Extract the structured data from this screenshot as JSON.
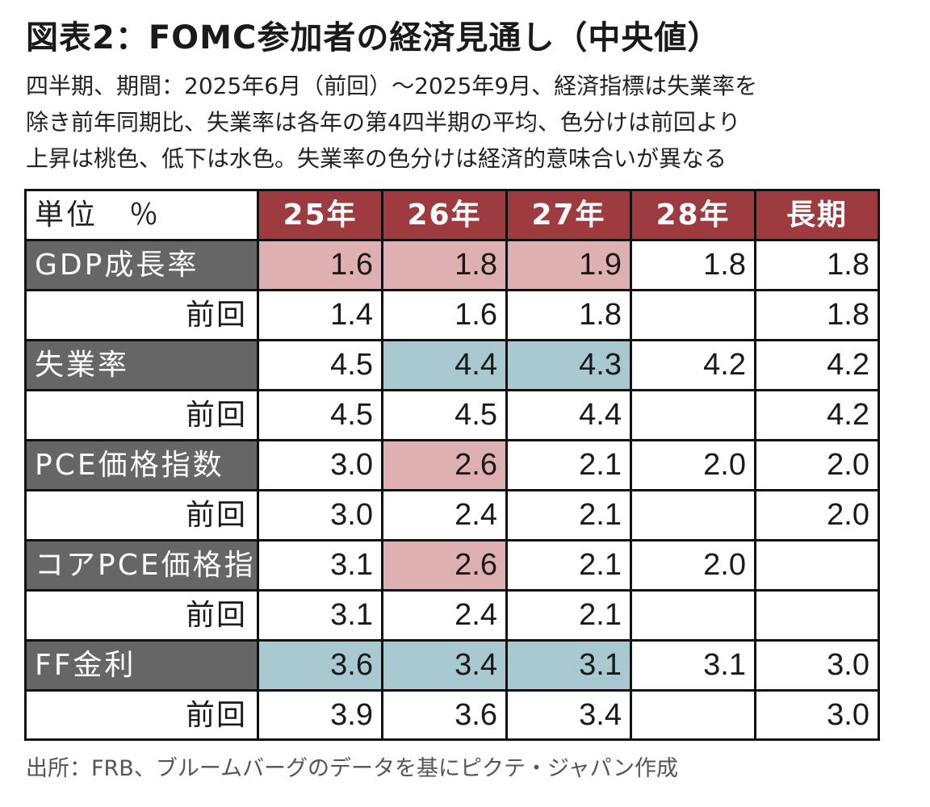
{
  "title": "図表2：FOMC参加者の経済見通し（中央値）",
  "subtitle_lines": [
    "四半期、期間：2025年6月（前回）～2025年9月、経済指標は失業率を",
    "除き前年同期比、失業率は各年の第4四半期の平均、色分けは前回より",
    "上昇は桃色、低下は水色。失業率の色分けは経済的意味合いが異なる"
  ],
  "source": "出所：FRB、ブルームバーグのデータを基にピクテ・ジャパン作成",
  "colors": {
    "header_bg": "#9e3b40",
    "label_bg": "#666666",
    "increase": "#dfb0b2",
    "decrease": "#a9c9d1"
  },
  "chart_data": {
    "type": "table",
    "unit_label": "単位　％",
    "columns": [
      "25年",
      "26年",
      "27年",
      "28年",
      "長期"
    ],
    "prev_label": "前回",
    "rows": [
      {
        "name": "GDP成長率",
        "current": [
          "1.6",
          "1.8",
          "1.9",
          "1.8",
          "1.8"
        ],
        "highlight": [
          "pink",
          "pink",
          "pink",
          "",
          ""
        ],
        "previous": [
          "1.4",
          "1.6",
          "1.8",
          "",
          "1.8"
        ]
      },
      {
        "name": "失業率",
        "current": [
          "4.5",
          "4.4",
          "4.3",
          "4.2",
          "4.2"
        ],
        "highlight": [
          "",
          "blue",
          "blue",
          "",
          ""
        ],
        "previous": [
          "4.5",
          "4.5",
          "4.4",
          "",
          "4.2"
        ]
      },
      {
        "name": "PCE価格指数",
        "current": [
          "3.0",
          "2.6",
          "2.1",
          "2.0",
          "2.0"
        ],
        "highlight": [
          "",
          "pink",
          "",
          "",
          ""
        ],
        "previous": [
          "3.0",
          "2.4",
          "2.1",
          "",
          "2.0"
        ]
      },
      {
        "name": "コアPCE価格指数",
        "current": [
          "3.1",
          "2.6",
          "2.1",
          "2.0",
          ""
        ],
        "highlight": [
          "",
          "pink",
          "",
          "",
          ""
        ],
        "previous": [
          "3.1",
          "2.4",
          "2.1",
          "",
          ""
        ]
      },
      {
        "name": "FF金利",
        "current": [
          "3.6",
          "3.4",
          "3.1",
          "3.1",
          "3.0"
        ],
        "highlight": [
          "blue",
          "blue",
          "blue",
          "",
          ""
        ],
        "previous": [
          "3.9",
          "3.6",
          "3.4",
          "",
          "3.0"
        ]
      }
    ]
  }
}
